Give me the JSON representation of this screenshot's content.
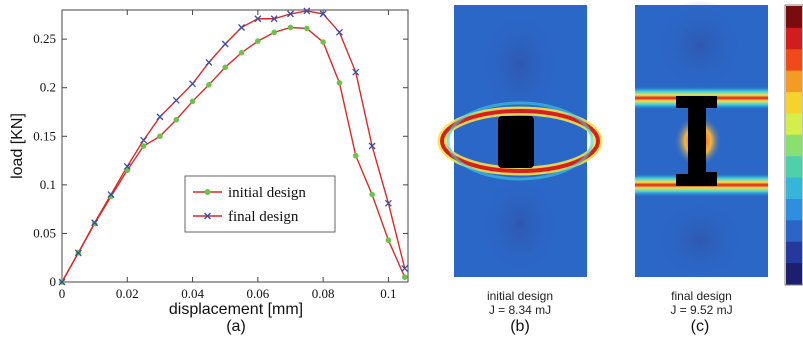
{
  "chart_data": {
    "type": "line",
    "xlabel": "displacement [mm]",
    "ylabel": "load [KN]",
    "xlim": [
      0,
      0.106
    ],
    "ylim": [
      0,
      0.28
    ],
    "xticks": [
      "0",
      "0.02",
      "0.04",
      "0.06",
      "0.08",
      "0.1"
    ],
    "yticks": [
      "0",
      "0.05",
      "0.1",
      "0.15",
      "0.2",
      "0.25"
    ],
    "legend_position": "center-right",
    "grid": false,
    "series": [
      {
        "name": "initial design",
        "color": "#d62a2a",
        "marker_color": "#6cc24a",
        "marker": "circle",
        "x": [
          0,
          0.005,
          0.01,
          0.015,
          0.02,
          0.025,
          0.03,
          0.035,
          0.04,
          0.045,
          0.05,
          0.055,
          0.06,
          0.065,
          0.07,
          0.075,
          0.08,
          0.085,
          0.09,
          0.095,
          0.1,
          0.105
        ],
        "y": [
          0,
          0.03,
          0.06,
          0.088,
          0.115,
          0.14,
          0.15,
          0.167,
          0.186,
          0.203,
          0.221,
          0.236,
          0.248,
          0.257,
          0.262,
          0.261,
          0.247,
          0.205,
          0.13,
          0.09,
          0.043,
          0.005
        ]
      },
      {
        "name": "final design",
        "color": "#d62a2a",
        "marker_color": "#3a4aa8",
        "marker": "x",
        "x": [
          0,
          0.005,
          0.01,
          0.015,
          0.02,
          0.025,
          0.03,
          0.035,
          0.04,
          0.045,
          0.05,
          0.055,
          0.06,
          0.065,
          0.07,
          0.075,
          0.08,
          0.085,
          0.09,
          0.095,
          0.1,
          0.105
        ],
        "y": [
          0,
          0.03,
          0.061,
          0.09,
          0.119,
          0.146,
          0.17,
          0.187,
          0.204,
          0.226,
          0.245,
          0.262,
          0.271,
          0.271,
          0.276,
          0.279,
          0.276,
          0.257,
          0.216,
          0.14,
          0.081,
          0.014
        ]
      }
    ]
  },
  "panels": {
    "a": {
      "label": "(a)"
    },
    "b": {
      "label": "(b)",
      "caption_line1": "initial design",
      "caption_line2": "J = 8.34 mJ"
    },
    "c": {
      "label": "(c)",
      "caption_line1": "final design",
      "caption_line2": "J = 9.52 mJ"
    }
  },
  "colors": {
    "field_background": "#2b67c7",
    "band_outer": "#f2e24a",
    "band_core": "#d91e1e",
    "void": "#000000"
  },
  "colorbar": {
    "colors": [
      "#7a0c0c",
      "#d01e1e",
      "#f04a1a",
      "#f59a22",
      "#f5d22e",
      "#d4ee4a",
      "#8ae06e",
      "#4ed0a8",
      "#35b6d6",
      "#2e8fe0",
      "#2c64c8",
      "#233a9c",
      "#1b1f6e"
    ]
  }
}
